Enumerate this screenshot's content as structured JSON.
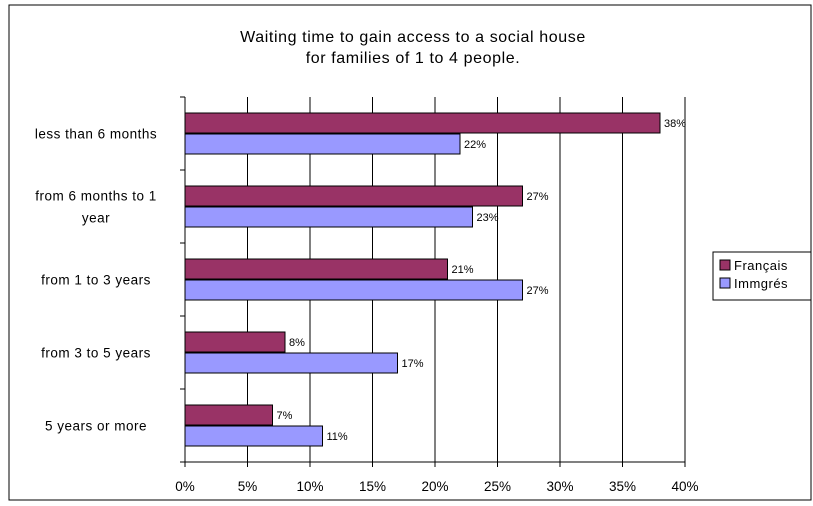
{
  "chart_data": {
    "type": "bar",
    "orientation": "horizontal",
    "title": "Waiting time to gain access to a social house for families of 1 to 4 people.",
    "title_lines": [
      "Waiting time to gain access to a social house",
      "for families of 1 to 4 people."
    ],
    "categories": [
      {
        "lines": [
          "less than 6 months"
        ]
      },
      {
        "lines": [
          "from 6 months to 1",
          "year"
        ]
      },
      {
        "lines": [
          "from 1 to 3 years"
        ]
      },
      {
        "lines": [
          "from 3 to 5 years"
        ]
      },
      {
        "lines": [
          "5 years or more"
        ]
      }
    ],
    "series": [
      {
        "name": "Français",
        "color": "#993366",
        "values": [
          38,
          27,
          21,
          8,
          7
        ]
      },
      {
        "name": "Immgrés",
        "color": "#9999ff",
        "values": [
          22,
          23,
          27,
          17,
          11
        ]
      }
    ],
    "xlim": [
      0,
      40
    ],
    "x_ticks": [
      0,
      5,
      10,
      15,
      20,
      25,
      30,
      35,
      40
    ],
    "tick_suffix": "%",
    "data_label_suffix": "%",
    "grid": "vertical",
    "legend": "right",
    "colors": {
      "plot_background": "#ffffff",
      "outer_background": "#ffffff",
      "gridline": "#000000"
    }
  }
}
